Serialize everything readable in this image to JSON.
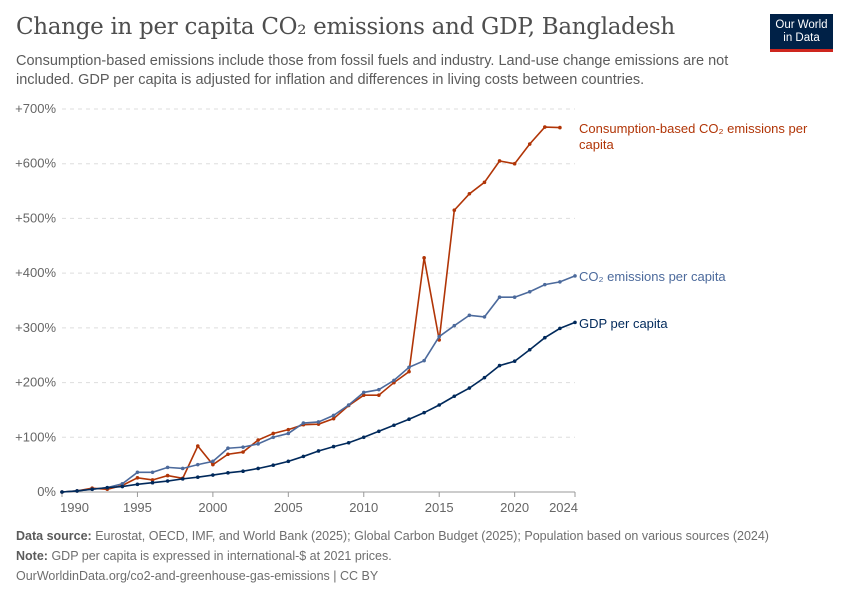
{
  "title": "Change in per capita CO₂ emissions and GDP, Bangladesh",
  "subtitle": "Consumption-based emissions include those from fossil fuels and industry. Land-use change emissions are not included. GDP per capita is adjusted for inflation and differences in living costs between countries.",
  "logo": "Our World in Data",
  "footer": {
    "source_label": "Data source:",
    "source": "Eurostat, OECD, IMF, and World Bank (2025); Global Carbon Budget (2025); Population based on various sources (2024)",
    "note_label": "Note:",
    "note": "GDP per capita is expressed in international-$ at 2021 prices.",
    "url": "OurWorldinData.org/co2-and-greenhouse-gas-emissions | CC BY"
  },
  "chart_data": {
    "type": "line",
    "title": "Change in per capita CO₂ emissions and GDP, Bangladesh",
    "xlim": [
      1990,
      2024
    ],
    "ylim": [
      0,
      700
    ],
    "x_ticks": [
      1990,
      1995,
      2000,
      2005,
      2010,
      2015,
      2020,
      2024
    ],
    "y_ticks": [
      {
        "v": 0,
        "label": "0%"
      },
      {
        "v": 100,
        "label": "+100%"
      },
      {
        "v": 200,
        "label": "+200%"
      },
      {
        "v": 300,
        "label": "+300%"
      },
      {
        "v": 400,
        "label": "+400%"
      },
      {
        "v": 500,
        "label": "+500%"
      },
      {
        "v": 600,
        "label": "+600%"
      },
      {
        "v": 700,
        "label": "+700%"
      }
    ],
    "grid": true,
    "legend": "right, line-end labels",
    "x": [
      1990,
      1991,
      1992,
      1993,
      1994,
      1995,
      1996,
      1997,
      1998,
      1999,
      2000,
      2001,
      2002,
      2003,
      2004,
      2005,
      2006,
      2007,
      2008,
      2009,
      2010,
      2011,
      2012,
      2013,
      2014,
      2015,
      2016,
      2017,
      2018,
      2019,
      2020,
      2021,
      2022,
      2023,
      2024
    ],
    "series": [
      {
        "name": "Consumption-based CO₂ emissions per capita",
        "color": "#b13507",
        "values": [
          0,
          2,
          7,
          5,
          12,
          26,
          22,
          30,
          25,
          84,
          50,
          69,
          73,
          95,
          107,
          114,
          123,
          124,
          134,
          158,
          177,
          177,
          200,
          220,
          428,
          278,
          515,
          545,
          566,
          605,
          600,
          636,
          667,
          666,
          null
        ]
      },
      {
        "name": "CO₂ emissions per capita",
        "color": "#4c6a9c",
        "values": [
          0,
          2,
          5,
          8,
          15,
          36,
          36,
          45,
          43,
          50,
          56,
          80,
          82,
          88,
          100,
          107,
          126,
          128,
          140,
          159,
          182,
          187,
          204,
          228,
          240,
          284,
          304,
          323,
          320,
          356,
          356,
          366,
          379,
          384,
          395
        ]
      },
      {
        "name": "GDP per capita",
        "color": "#00295b",
        "values": [
          0,
          2,
          5,
          8,
          10,
          14,
          17,
          20,
          24,
          27,
          31,
          35,
          38,
          43,
          49,
          56,
          65,
          75,
          83,
          90,
          100,
          111,
          122,
          133,
          145,
          159,
          175,
          190,
          209,
          231,
          239,
          260,
          282,
          299,
          310
        ]
      }
    ]
  }
}
